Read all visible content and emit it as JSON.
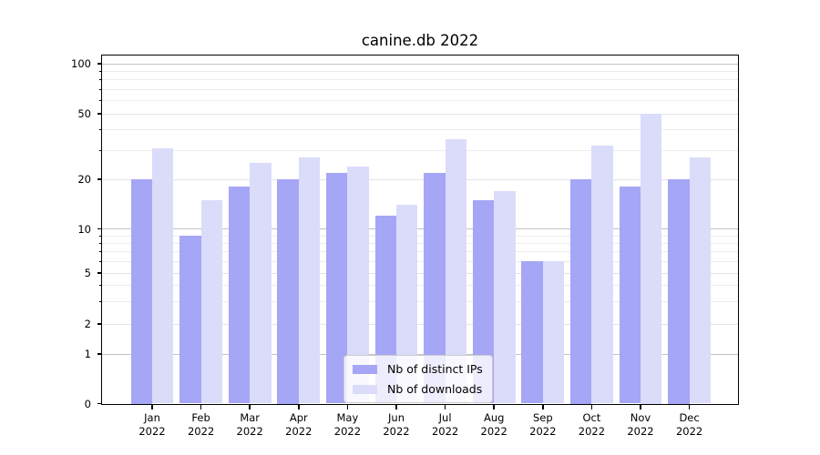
{
  "title": "canine.db 2022",
  "chart_data": {
    "type": "bar",
    "title": "canine.db 2022",
    "categories": [
      "Jan 2022",
      "Feb 2022",
      "Mar 2022",
      "Apr 2022",
      "May 2022",
      "Jun 2022",
      "Jul 2022",
      "Aug 2022",
      "Sep 2022",
      "Oct 2022",
      "Nov 2022",
      "Dec 2022"
    ],
    "series": [
      {
        "name": "Nb of distinct IPs",
        "color": "#a6a6f6",
        "values": [
          20,
          9,
          18,
          20,
          22,
          12,
          22,
          15,
          6,
          20,
          18,
          20
        ]
      },
      {
        "name": "Nb of downloads",
        "color": "#dbdbfa",
        "values": [
          31,
          15,
          25,
          27,
          24,
          14,
          35,
          17,
          6,
          32,
          50,
          27
        ]
      }
    ],
    "xlabel": "",
    "ylabel": "",
    "yscale": "log-like with linear segment near zero",
    "yticks": [
      0,
      1,
      2,
      5,
      10,
      20,
      50,
      100
    ],
    "minor_gridlines": [
      3,
      4,
      6,
      7,
      8,
      9,
      30,
      40,
      60,
      70,
      80,
      90
    ],
    "ylim": [
      0,
      112
    ],
    "grid": true,
    "legend_position": "lower center"
  }
}
